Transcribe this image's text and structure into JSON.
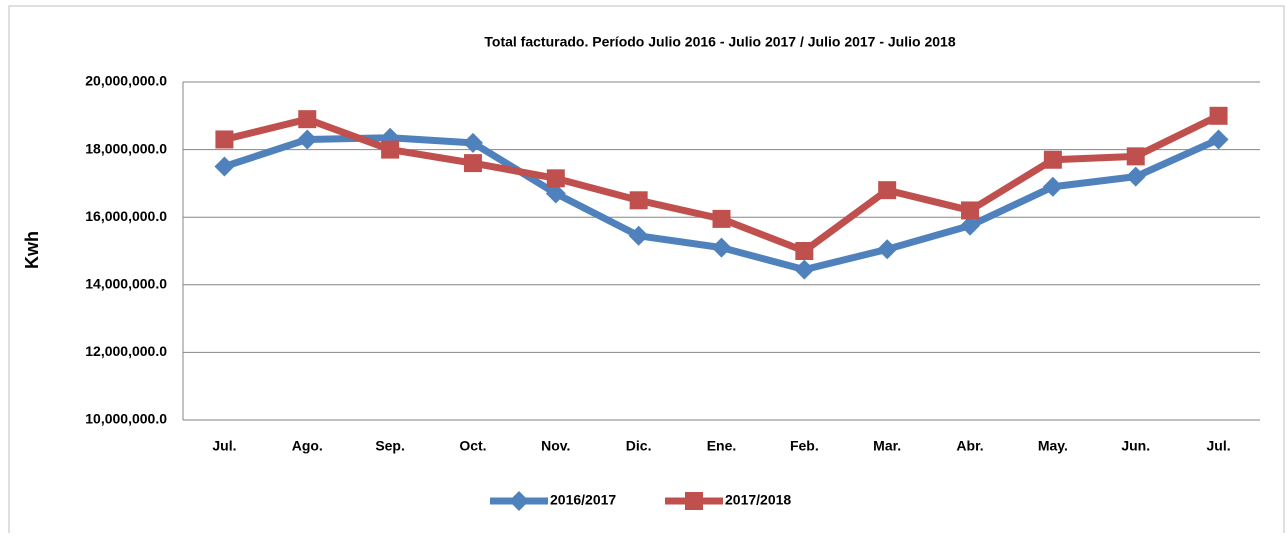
{
  "chart_data": {
    "type": "line",
    "title": "Total facturado. Período Julio 2016 - Julio 2017 / Julio 2017 - Julio 2018",
    "y_label": "Kwh",
    "categories": [
      "Jul.",
      "Ago.",
      "Sep.",
      "Oct.",
      "Nov.",
      "Dic.",
      "Ene.",
      "Feb.",
      "Mar.",
      "Abr.",
      "May.",
      "Jun.",
      "Jul."
    ],
    "series": [
      {
        "name": "2016/2017",
        "color": "#4f81bd",
        "marker": "diamond",
        "values": [
          17500000,
          18300000,
          18350000,
          18200000,
          16700000,
          15450000,
          15100000,
          14450000,
          15050000,
          15750000,
          16900000,
          17200000,
          18300000
        ]
      },
      {
        "name": "2017/2018",
        "color": "#c0504d",
        "marker": "square",
        "values": [
          18300000,
          18900000,
          18000000,
          17600000,
          17150000,
          16500000,
          15950000,
          15000000,
          16800000,
          16200000,
          17700000,
          17800000,
          19000000
        ]
      }
    ],
    "ylim": [
      10000000,
      20000000
    ],
    "yticks": [
      {
        "value": 10000000,
        "label": "10,000,000.0"
      },
      {
        "value": 12000000,
        "label": "12,000,000.0"
      },
      {
        "value": 14000000,
        "label": "14,000,000.0"
      },
      {
        "value": 16000000,
        "label": "16,000,000.0"
      },
      {
        "value": 18000000,
        "label": "18,000,000.0"
      },
      {
        "value": 20000000,
        "label": "20,000,000.0"
      }
    ],
    "grid": true,
    "legend": "bottom"
  }
}
